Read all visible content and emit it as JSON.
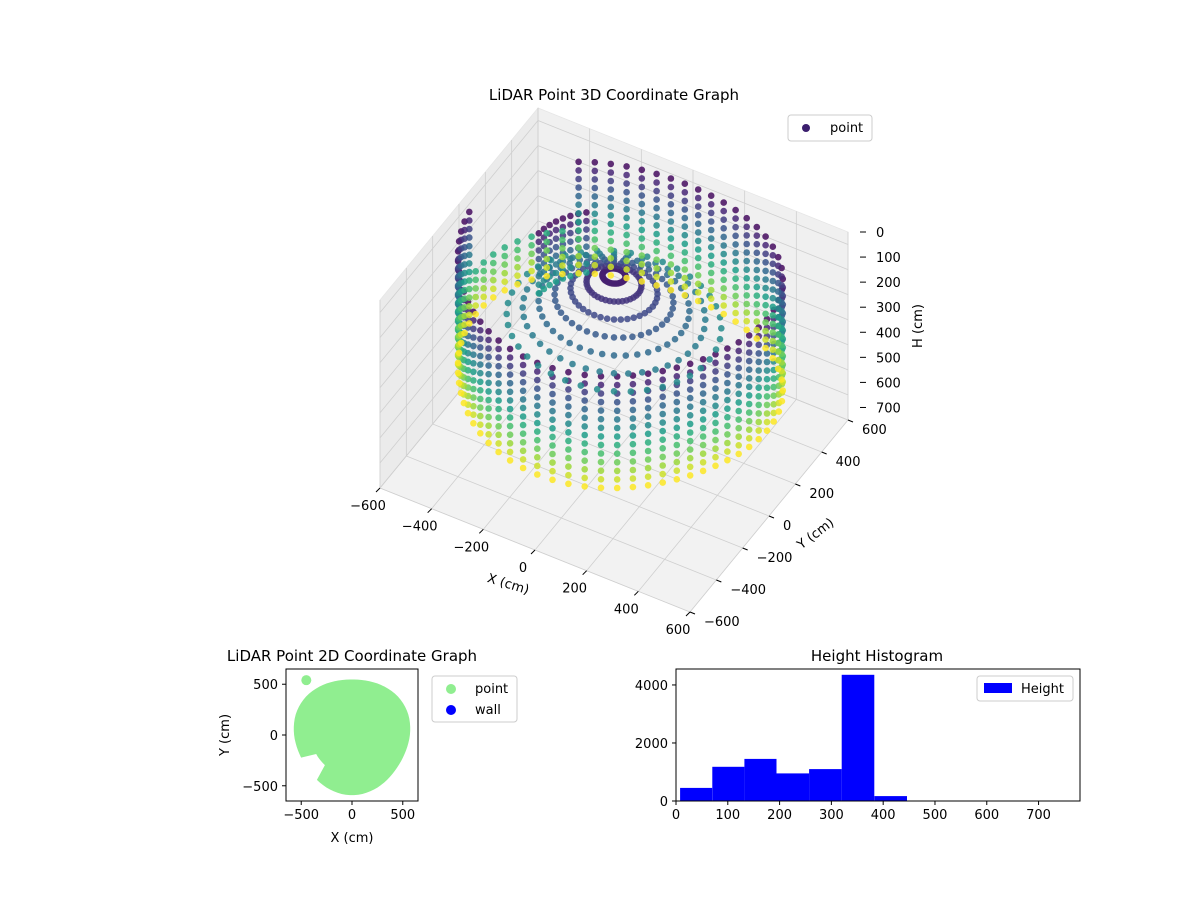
{
  "chart_data": [
    {
      "type": "scatter",
      "title": "LiDAR Point 3D Coordinate Graph",
      "xlabel": "X (cm)",
      "ylabel": "Y (cm)",
      "zlabel": "H (cm)",
      "xlim": [
        -600,
        600
      ],
      "ylim": [
        -600,
        600
      ],
      "zlim": [
        0,
        750
      ],
      "z_inverted": true,
      "xticks": [
        "−600",
        "−400",
        "−200",
        "0",
        "200",
        "400",
        "600"
      ],
      "yticks": [
        "−600",
        "−400",
        "−200",
        "0",
        "200",
        "400",
        "600"
      ],
      "zticks": [
        "0",
        "100",
        "200",
        "300",
        "400",
        "500",
        "600",
        "700"
      ],
      "colormap": "viridis",
      "legend": {
        "placement": "top-right",
        "entries": [
          {
            "name": "point",
            "color": "#3b1e6e"
          }
        ]
      },
      "wall_radius": 560,
      "height_range": [
        15,
        460
      ],
      "grid": true
    },
    {
      "type": "scatter",
      "title": "LiDAR Point 2D Coordinate Graph",
      "xlabel": "X (cm)",
      "ylabel": "Y (cm)",
      "xlim": [
        -650,
        650
      ],
      "ylim": [
        -650,
        650
      ],
      "xticks": [
        "−500",
        "0",
        "500"
      ],
      "yticks": [
        "−500",
        "0",
        "500"
      ],
      "radius": 570,
      "legend": {
        "placement": "outside-right",
        "entries": [
          {
            "name": "point",
            "color": "#90ee90"
          },
          {
            "name": "wall",
            "color": "#0000ff"
          }
        ]
      },
      "grid": false
    },
    {
      "type": "bar",
      "title": "Height Histogram",
      "xlabel": "",
      "ylabel": "",
      "xlim": [
        0,
        780
      ],
      "ylim": [
        0,
        4550
      ],
      "xticks": [
        "0",
        "100",
        "200",
        "300",
        "400",
        "500",
        "600",
        "700"
      ],
      "yticks": [
        "0",
        "2000",
        "4000"
      ],
      "bins": [
        {
          "start": 8,
          "end": 70,
          "count": 450
        },
        {
          "start": 70,
          "end": 132,
          "count": 1180
        },
        {
          "start": 132,
          "end": 194,
          "count": 1450
        },
        {
          "start": 194,
          "end": 257,
          "count": 950
        },
        {
          "start": 257,
          "end": 320,
          "count": 1100
        },
        {
          "start": 320,
          "end": 383,
          "count": 4350
        },
        {
          "start": 383,
          "end": 446,
          "count": 170
        },
        {
          "start": 446,
          "end": 509,
          "count": 0
        },
        {
          "start": 509,
          "end": 572,
          "count": 0
        },
        {
          "start": 572,
          "end": 635,
          "count": 0
        },
        {
          "start": 635,
          "end": 698,
          "count": 0
        },
        {
          "start": 698,
          "end": 761,
          "count": 0
        }
      ],
      "color": "#0000ff",
      "legend": {
        "placement": "top-right",
        "entries": [
          {
            "name": "Height",
            "color": "#0000ff"
          }
        ]
      },
      "grid": false
    }
  ]
}
